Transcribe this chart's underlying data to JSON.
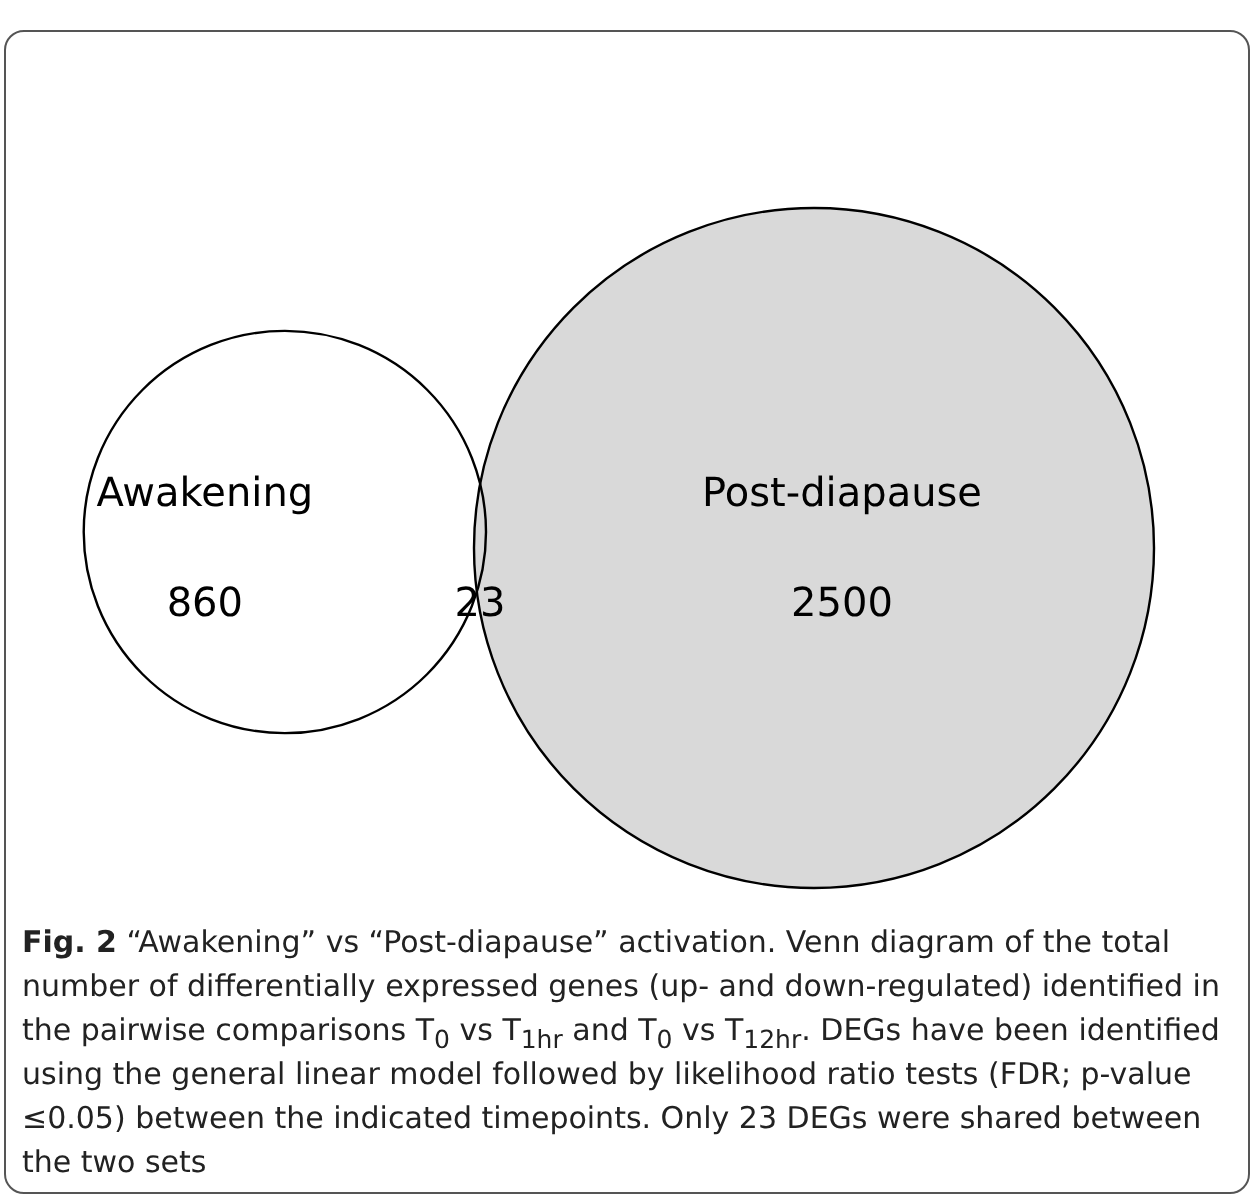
{
  "chart_data": {
    "type": "other",
    "title": "Fig. 2",
    "subtitle": "“Awakening” vs “Post-diapause” activation. Venn diagram of the total number of differentially expressed genes (up- and down-regulated) identified in the pairwise comparisons T$_{0}$ vs T$_{1hr}$ and T$_{0}$ vs T$_{12hr}$. DEGs have been identified using the general linear model followed by likelihood ratio tests (FDR; p-value ≤0.05) between the indicated timepoints. Only 23 DEGs were shared between the two sets",
    "categories": [
      "Awakening",
      null,
      "Post-diapause"
    ],
    "values": [
      860,
      23,
      2500
    ],
    "colors": [
      "#ffffff",
      "#d9d9d9",
      "#d9d9d9"
    ],
    "data_labels": true
  }
}
